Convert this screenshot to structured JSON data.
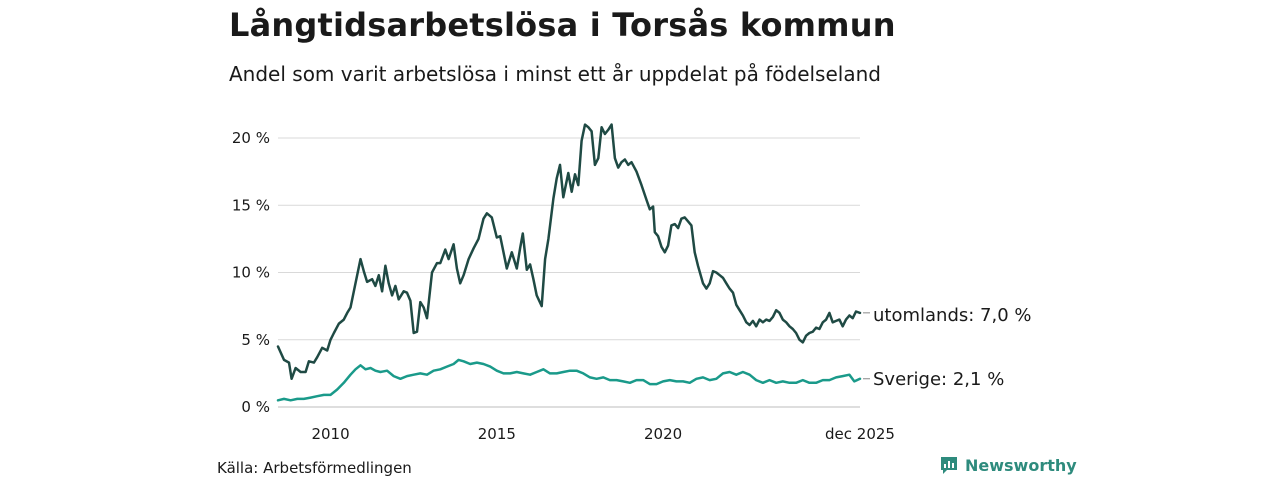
{
  "header": {
    "title": "Långtidsarbetslösa i Torsås kommun",
    "subtitle": "Andel som varit arbetslösa i minst ett år uppdelat på födelseland"
  },
  "footer": {
    "source": "Källa: Arbetsförmedlingen",
    "brand": "Newsworthy"
  },
  "colors": {
    "utomlands": "#1f4a44",
    "sverige": "#1a9a8a",
    "grid": "#d9d9d9",
    "brand": "#2e8b7d"
  },
  "chart_data": {
    "type": "line",
    "title": "Långtidsarbetslösa i Torsås kommun",
    "subtitle": "Andel som varit arbetslösa i minst ett år uppdelat på födelseland",
    "xlabel": "",
    "ylabel": "",
    "xlim": [
      2008.42,
      2025.92
    ],
    "ylim": [
      0,
      21
    ],
    "yticks": [
      0,
      5,
      10,
      15,
      20
    ],
    "ytick_labels": [
      "0 %",
      "5 %",
      "10 %",
      "15 %",
      "20 %"
    ],
    "xticks": [
      2010,
      2015,
      2020,
      2025.92
    ],
    "xtick_labels": [
      "2010",
      "2015",
      "2020",
      "dec 2025"
    ],
    "grid": true,
    "series": [
      {
        "name": "utomlands",
        "end_label": "utomlands: 7,0 %",
        "points": [
          [
            2008.42,
            4.5
          ],
          [
            2008.6,
            3.5
          ],
          [
            2008.75,
            3.3
          ],
          [
            2008.83,
            2.1
          ],
          [
            2008.95,
            2.9
          ],
          [
            2009.1,
            2.6
          ],
          [
            2009.25,
            2.6
          ],
          [
            2009.35,
            3.4
          ],
          [
            2009.5,
            3.3
          ],
          [
            2009.6,
            3.7
          ],
          [
            2009.75,
            4.4
          ],
          [
            2009.9,
            4.2
          ],
          [
            2010.0,
            5.0
          ],
          [
            2010.1,
            5.5
          ],
          [
            2010.25,
            6.2
          ],
          [
            2010.4,
            6.5
          ],
          [
            2010.5,
            7.0
          ],
          [
            2010.6,
            7.4
          ],
          [
            2010.75,
            9.2
          ],
          [
            2010.9,
            11.0
          ],
          [
            2011.0,
            10.1
          ],
          [
            2011.1,
            9.3
          ],
          [
            2011.25,
            9.5
          ],
          [
            2011.35,
            9.0
          ],
          [
            2011.45,
            9.8
          ],
          [
            2011.55,
            8.6
          ],
          [
            2011.65,
            10.5
          ],
          [
            2011.75,
            9.2
          ],
          [
            2011.85,
            8.3
          ],
          [
            2011.95,
            9.0
          ],
          [
            2012.05,
            8.0
          ],
          [
            2012.2,
            8.6
          ],
          [
            2012.3,
            8.5
          ],
          [
            2012.4,
            7.9
          ],
          [
            2012.5,
            5.5
          ],
          [
            2012.6,
            5.6
          ],
          [
            2012.7,
            7.8
          ],
          [
            2012.8,
            7.4
          ],
          [
            2012.9,
            6.6
          ],
          [
            2013.05,
            10.0
          ],
          [
            2013.2,
            10.7
          ],
          [
            2013.3,
            10.7
          ],
          [
            2013.45,
            11.7
          ],
          [
            2013.55,
            11.0
          ],
          [
            2013.7,
            12.1
          ],
          [
            2013.8,
            10.3
          ],
          [
            2013.9,
            9.2
          ],
          [
            2014.0,
            9.8
          ],
          [
            2014.15,
            11.0
          ],
          [
            2014.3,
            11.8
          ],
          [
            2014.45,
            12.5
          ],
          [
            2014.6,
            14.0
          ],
          [
            2014.7,
            14.4
          ],
          [
            2014.85,
            14.1
          ],
          [
            2015.0,
            12.6
          ],
          [
            2015.1,
            12.7
          ],
          [
            2015.2,
            11.5
          ],
          [
            2015.3,
            10.3
          ],
          [
            2015.45,
            11.5
          ],
          [
            2015.6,
            10.3
          ],
          [
            2015.7,
            11.8
          ],
          [
            2015.78,
            12.9
          ],
          [
            2015.9,
            10.2
          ],
          [
            2016.0,
            10.6
          ],
          [
            2016.1,
            9.5
          ],
          [
            2016.2,
            8.3
          ],
          [
            2016.35,
            7.5
          ],
          [
            2016.45,
            11.0
          ],
          [
            2016.55,
            12.5
          ],
          [
            2016.7,
            15.5
          ],
          [
            2016.8,
            17.0
          ],
          [
            2016.9,
            18.0
          ],
          [
            2017.0,
            15.6
          ],
          [
            2017.15,
            17.4
          ],
          [
            2017.25,
            16.0
          ],
          [
            2017.35,
            17.3
          ],
          [
            2017.45,
            16.5
          ],
          [
            2017.55,
            19.8
          ],
          [
            2017.65,
            21.0
          ],
          [
            2017.75,
            20.8
          ],
          [
            2017.85,
            20.5
          ],
          [
            2017.95,
            18.0
          ],
          [
            2018.05,
            18.5
          ],
          [
            2018.15,
            20.8
          ],
          [
            2018.25,
            20.3
          ],
          [
            2018.35,
            20.6
          ],
          [
            2018.45,
            21.0
          ],
          [
            2018.55,
            18.5
          ],
          [
            2018.65,
            17.8
          ],
          [
            2018.75,
            18.2
          ],
          [
            2018.85,
            18.4
          ],
          [
            2018.95,
            18.0
          ],
          [
            2019.05,
            18.2
          ],
          [
            2019.2,
            17.5
          ],
          [
            2019.35,
            16.5
          ],
          [
            2019.5,
            15.4
          ],
          [
            2019.6,
            14.7
          ],
          [
            2019.7,
            14.9
          ],
          [
            2019.75,
            13.0
          ],
          [
            2019.85,
            12.7
          ],
          [
            2019.95,
            11.9
          ],
          [
            2020.05,
            11.5
          ],
          [
            2020.15,
            12.0
          ],
          [
            2020.25,
            13.5
          ],
          [
            2020.35,
            13.6
          ],
          [
            2020.45,
            13.3
          ],
          [
            2020.55,
            14.0
          ],
          [
            2020.65,
            14.1
          ],
          [
            2020.75,
            13.8
          ],
          [
            2020.85,
            13.5
          ],
          [
            2020.95,
            11.5
          ],
          [
            2021.05,
            10.5
          ],
          [
            2021.2,
            9.2
          ],
          [
            2021.3,
            8.8
          ],
          [
            2021.4,
            9.2
          ],
          [
            2021.5,
            10.1
          ],
          [
            2021.6,
            10.0
          ],
          [
            2021.7,
            9.8
          ],
          [
            2021.8,
            9.6
          ],
          [
            2021.9,
            9.2
          ],
          [
            2022.0,
            8.8
          ],
          [
            2022.1,
            8.5
          ],
          [
            2022.2,
            7.6
          ],
          [
            2022.3,
            7.2
          ],
          [
            2022.4,
            6.8
          ],
          [
            2022.5,
            6.3
          ],
          [
            2022.6,
            6.1
          ],
          [
            2022.7,
            6.4
          ],
          [
            2022.8,
            6.0
          ],
          [
            2022.9,
            6.5
          ],
          [
            2023.0,
            6.3
          ],
          [
            2023.1,
            6.5
          ],
          [
            2023.2,
            6.4
          ],
          [
            2023.3,
            6.7
          ],
          [
            2023.4,
            7.2
          ],
          [
            2023.5,
            7.0
          ],
          [
            2023.6,
            6.5
          ],
          [
            2023.7,
            6.3
          ],
          [
            2023.8,
            6.0
          ],
          [
            2023.9,
            5.8
          ],
          [
            2024.0,
            5.5
          ],
          [
            2024.1,
            5.0
          ],
          [
            2024.2,
            4.8
          ],
          [
            2024.3,
            5.3
          ],
          [
            2024.4,
            5.5
          ],
          [
            2024.5,
            5.6
          ],
          [
            2024.6,
            5.9
          ],
          [
            2024.7,
            5.8
          ],
          [
            2024.8,
            6.3
          ],
          [
            2024.9,
            6.5
          ],
          [
            2025.0,
            7.0
          ],
          [
            2025.1,
            6.3
          ],
          [
            2025.2,
            6.4
          ],
          [
            2025.3,
            6.5
          ],
          [
            2025.4,
            6.0
          ],
          [
            2025.5,
            6.5
          ],
          [
            2025.6,
            6.8
          ],
          [
            2025.7,
            6.6
          ],
          [
            2025.8,
            7.1
          ],
          [
            2025.92,
            7.0
          ]
        ]
      },
      {
        "name": "Sverige",
        "end_label": "Sverige: 2,1 %",
        "points": [
          [
            2008.42,
            0.5
          ],
          [
            2008.6,
            0.6
          ],
          [
            2008.8,
            0.5
          ],
          [
            2009.0,
            0.6
          ],
          [
            2009.2,
            0.6
          ],
          [
            2009.4,
            0.7
          ],
          [
            2009.6,
            0.8
          ],
          [
            2009.8,
            0.9
          ],
          [
            2010.0,
            0.9
          ],
          [
            2010.2,
            1.3
          ],
          [
            2010.4,
            1.8
          ],
          [
            2010.6,
            2.4
          ],
          [
            2010.75,
            2.8
          ],
          [
            2010.9,
            3.1
          ],
          [
            2011.05,
            2.8
          ],
          [
            2011.2,
            2.9
          ],
          [
            2011.35,
            2.7
          ],
          [
            2011.5,
            2.6
          ],
          [
            2011.7,
            2.7
          ],
          [
            2011.9,
            2.3
          ],
          [
            2012.1,
            2.1
          ],
          [
            2012.3,
            2.3
          ],
          [
            2012.5,
            2.4
          ],
          [
            2012.7,
            2.5
          ],
          [
            2012.9,
            2.4
          ],
          [
            2013.1,
            2.7
          ],
          [
            2013.3,
            2.8
          ],
          [
            2013.5,
            3.0
          ],
          [
            2013.7,
            3.2
          ],
          [
            2013.85,
            3.5
          ],
          [
            2014.0,
            3.4
          ],
          [
            2014.2,
            3.2
          ],
          [
            2014.4,
            3.3
          ],
          [
            2014.6,
            3.2
          ],
          [
            2014.8,
            3.0
          ],
          [
            2015.0,
            2.7
          ],
          [
            2015.2,
            2.5
          ],
          [
            2015.4,
            2.5
          ],
          [
            2015.6,
            2.6
          ],
          [
            2015.8,
            2.5
          ],
          [
            2016.0,
            2.4
          ],
          [
            2016.2,
            2.6
          ],
          [
            2016.4,
            2.8
          ],
          [
            2016.6,
            2.5
          ],
          [
            2016.8,
            2.5
          ],
          [
            2017.0,
            2.6
          ],
          [
            2017.2,
            2.7
          ],
          [
            2017.4,
            2.7
          ],
          [
            2017.6,
            2.5
          ],
          [
            2017.8,
            2.2
          ],
          [
            2018.0,
            2.1
          ],
          [
            2018.2,
            2.2
          ],
          [
            2018.4,
            2.0
          ],
          [
            2018.6,
            2.0
          ],
          [
            2018.8,
            1.9
          ],
          [
            2019.0,
            1.8
          ],
          [
            2019.2,
            2.0
          ],
          [
            2019.4,
            2.0
          ],
          [
            2019.6,
            1.7
          ],
          [
            2019.8,
            1.7
          ],
          [
            2020.0,
            1.9
          ],
          [
            2020.2,
            2.0
          ],
          [
            2020.4,
            1.9
          ],
          [
            2020.6,
            1.9
          ],
          [
            2020.8,
            1.8
          ],
          [
            2021.0,
            2.1
          ],
          [
            2021.2,
            2.2
          ],
          [
            2021.4,
            2.0
          ],
          [
            2021.6,
            2.1
          ],
          [
            2021.8,
            2.5
          ],
          [
            2022.0,
            2.6
          ],
          [
            2022.2,
            2.4
          ],
          [
            2022.4,
            2.6
          ],
          [
            2022.6,
            2.4
          ],
          [
            2022.8,
            2.0
          ],
          [
            2023.0,
            1.8
          ],
          [
            2023.2,
            2.0
          ],
          [
            2023.4,
            1.8
          ],
          [
            2023.6,
            1.9
          ],
          [
            2023.8,
            1.8
          ],
          [
            2024.0,
            1.8
          ],
          [
            2024.2,
            2.0
          ],
          [
            2024.4,
            1.8
          ],
          [
            2024.6,
            1.8
          ],
          [
            2024.8,
            2.0
          ],
          [
            2025.0,
            2.0
          ],
          [
            2025.2,
            2.2
          ],
          [
            2025.4,
            2.3
          ],
          [
            2025.6,
            2.4
          ],
          [
            2025.75,
            1.9
          ],
          [
            2025.92,
            2.1
          ]
        ]
      }
    ]
  }
}
